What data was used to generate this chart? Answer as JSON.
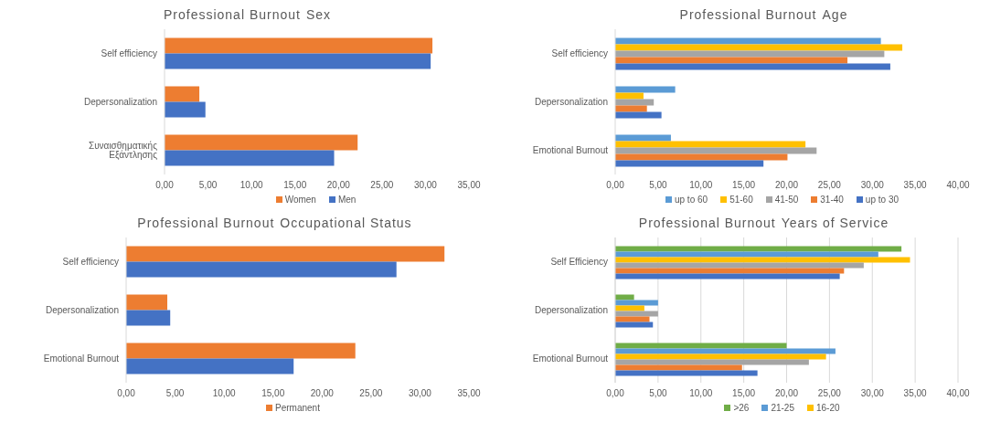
{
  "chart_data": [
    {
      "type": "bar",
      "orientation": "horizontal",
      "title": "Professional Burnout",
      "subtitle": "Sex",
      "categories": [
        "Self efficiency",
        "Depersonalization",
        "Συναισθηματικής Εξάντλησης"
      ],
      "series": [
        {
          "name": "Women",
          "color": "#ed7d31",
          "values": [
            30.8,
            4.0,
            22.2
          ]
        },
        {
          "name": "Men",
          "color": "#4472c4",
          "values": [
            30.6,
            4.7,
            19.5
          ]
        }
      ],
      "xlim": [
        0,
        35
      ],
      "xticks": [
        {
          "value": 0,
          "label": "0,00"
        },
        {
          "value": 5,
          "label": "5,00"
        },
        {
          "value": 10,
          "label": "10,00"
        },
        {
          "value": 15,
          "label": "15,00"
        },
        {
          "value": 20,
          "label": "20,00"
        },
        {
          "value": 25,
          "label": "25,00"
        },
        {
          "value": 30,
          "label": "30,00"
        },
        {
          "value": 35,
          "label": "35,00"
        }
      ],
      "grid": false,
      "legend": "bottom"
    },
    {
      "type": "bar",
      "orientation": "horizontal",
      "title": "Professional Burnout",
      "subtitle": "Age",
      "categories": [
        "Self efficiency",
        "Depersonalization",
        "Emotional Burnout"
      ],
      "series": [
        {
          "name": "up to 60",
          "color": "#5b9bd5",
          "values": [
            31.0,
            7.0,
            6.5
          ]
        },
        {
          "name": "51-60",
          "color": "#ffc000",
          "values": [
            33.5,
            3.3,
            22.2
          ]
        },
        {
          "name": "41-50",
          "color": "#a5a5a5",
          "values": [
            31.4,
            4.5,
            23.5
          ]
        },
        {
          "name": "31-40",
          "color": "#ed7d31",
          "values": [
            27.1,
            3.7,
            20.1
          ]
        },
        {
          "name": "up to 30",
          "color": "#4472c4",
          "values": [
            32.1,
            5.4,
            17.3
          ]
        }
      ],
      "xlim": [
        0,
        40
      ],
      "xticks": [
        {
          "value": 0,
          "label": "0,00"
        },
        {
          "value": 5,
          "label": "5,00"
        },
        {
          "value": 10,
          "label": "10,00"
        },
        {
          "value": 15,
          "label": "15,00"
        },
        {
          "value": 20,
          "label": "20,00"
        },
        {
          "value": 25,
          "label": "25,00"
        },
        {
          "value": 30,
          "label": "30,00"
        },
        {
          "value": 35,
          "label": "35,00"
        },
        {
          "value": 40,
          "label": "40,00"
        }
      ],
      "grid": false,
      "legend": "bottom"
    },
    {
      "type": "bar",
      "orientation": "horizontal",
      "title": "Professional Burnout",
      "subtitle": "Occupational Status",
      "categories": [
        "Self efficiency",
        "Depersonalization",
        "Emotional Burnout"
      ],
      "series": [
        {
          "name": "Permanent",
          "color": "#ed7d31",
          "values": [
            32.5,
            4.2,
            23.4
          ]
        },
        {
          "color": "#4472c4",
          "values": [
            27.6,
            4.5,
            17.1
          ]
        }
      ],
      "xlim": [
        0,
        35
      ],
      "xticks": [
        {
          "value": 0,
          "label": "0,00"
        },
        {
          "value": 5,
          "label": "5,00"
        },
        {
          "value": 10,
          "label": "10,00"
        },
        {
          "value": 15,
          "label": "15,00"
        },
        {
          "value": 20,
          "label": "20,00"
        },
        {
          "value": 25,
          "label": "25,00"
        },
        {
          "value": 30,
          "label": "30,00"
        },
        {
          "value": 35,
          "label": "35,00"
        }
      ],
      "grid": false,
      "legend": "bottom"
    },
    {
      "type": "bar",
      "orientation": "horizontal",
      "title": "Professional Burnout",
      "subtitle": "Years of Service",
      "categories": [
        "Self Efficiency",
        "Depersonalization",
        "Emotional Burnout"
      ],
      "series": [
        {
          "name": ">26",
          "color": "#70ad47",
          "values": [
            33.4,
            2.2,
            20.0
          ]
        },
        {
          "name": "21-25",
          "color": "#5b9bd5",
          "values": [
            30.7,
            5.0,
            25.7
          ]
        },
        {
          "name": "16-20",
          "color": "#ffc000",
          "values": [
            34.4,
            3.4,
            24.6
          ]
        },
        {
          "color": "#a5a5a5",
          "values": [
            29.0,
            5.0,
            22.6
          ]
        },
        {
          "color": "#ed7d31",
          "values": [
            26.7,
            4.0,
            14.8
          ]
        },
        {
          "color": "#4472c4",
          "values": [
            26.2,
            4.4,
            16.6
          ]
        }
      ],
      "xlim": [
        0,
        40
      ],
      "xticks": [
        {
          "value": 0,
          "label": "0,00"
        },
        {
          "value": 5,
          "label": "5,00"
        },
        {
          "value": 10,
          "label": "10,00"
        },
        {
          "value": 15,
          "label": "15,00"
        },
        {
          "value": 20,
          "label": "20,00"
        },
        {
          "value": 25,
          "label": "25,00"
        },
        {
          "value": 30,
          "label": "30,00"
        },
        {
          "value": 35,
          "label": "35,00"
        },
        {
          "value": 40,
          "label": "40,00"
        }
      ],
      "grid": "x",
      "legend": "bottom"
    }
  ]
}
